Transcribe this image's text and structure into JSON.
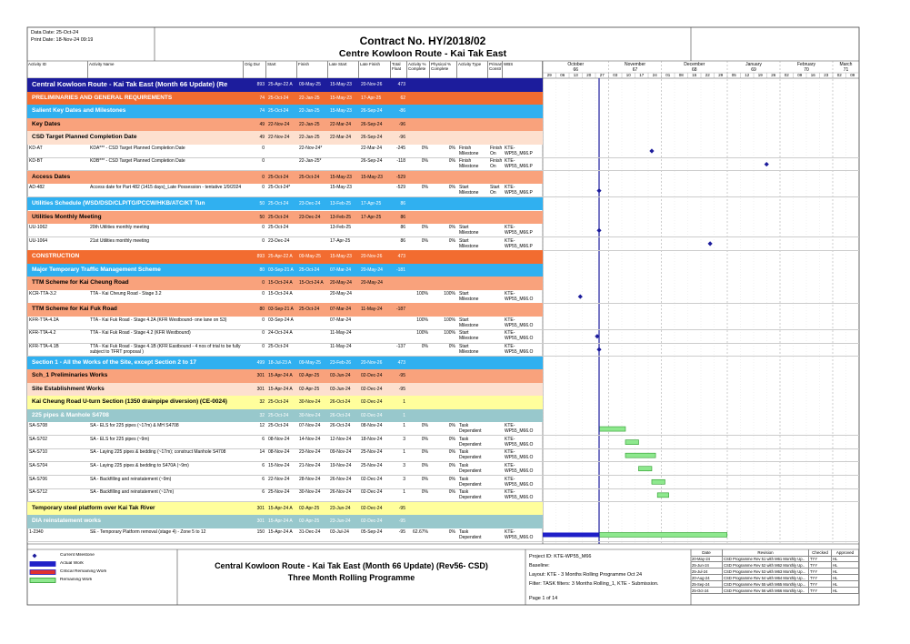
{
  "header": {
    "data_date_label": "Data Date:",
    "data_date": "25-Oct-24",
    "print_date": "Print Date: 18-Nov-24 09:19",
    "title": "Contract No. HY/2018/02",
    "subtitle": "Centre Kowloon Route - Kai Tak East"
  },
  "table": {
    "columns": [
      "Activity ID",
      "Activity Name",
      "Orig Dur",
      "Start",
      "Finish",
      "Late Start",
      "Late Finish",
      "Total Float",
      "Activity % Complete",
      "Physical % Complete",
      "Activity Type",
      "Primary Constr",
      "WBS"
    ],
    "rows": [
      {
        "name": "Central Kowloon Route - Kai Tak East (Month 66 Update) (Re",
        "orig_dur": 893,
        "start": "25-Apr-22 A",
        "finish": "09-May-25",
        "late_start": "15-May-23",
        "late_finish": "20-Nov-26",
        "total_float": 473,
        "color": "#1c1c9c",
        "text_color": "#ffffff"
      },
      {
        "name": "PRELIMINARIES AND GENERAL REQUIREMENTS",
        "orig_dur": 74,
        "start": "25-Oct-24",
        "finish": "22-Jan-25",
        "late_start": "15-May-23",
        "late_finish": "17-Apr-25",
        "total_float": 62,
        "color": "#f26c30",
        "text_color": "#ffffff"
      },
      {
        "name": "Salient Key Dates and Milestones",
        "orig_dur": 74,
        "start": "25-Oct-24",
        "finish": "22-Jan-25",
        "late_start": "15-May-23",
        "late_finish": "26-Sep-24",
        "total_float": -86,
        "color": "#30b0f0",
        "text_color": "#ffffff"
      },
      {
        "name": "Key Dates",
        "orig_dur": 49,
        "start": "22-Nov-24",
        "finish": "22-Jan-25",
        "late_start": "22-Mar-24",
        "late_finish": "26-Sep-24",
        "total_float": -96,
        "color": "#f9a27c",
        "text_color": "#000000"
      },
      {
        "name": "CSD Target Planned Completion Date",
        "orig_dur": 49,
        "start": "22-Nov-24",
        "finish": "22-Jan-25",
        "late_start": "22-Mar-24",
        "late_finish": "26-Sep-24",
        "total_float": -96,
        "color": "#fde0cf",
        "text_color": "#000000"
      },
      {
        "id": "KD-AT",
        "name": "KDA*** - CSD Target Planned Completion Date",
        "orig_dur": 0,
        "finish": "22-Nov-24*",
        "late_finish": "22-Mar-24",
        "total_float": -245,
        "activity_pct": "0%",
        "physical_pct": "0%",
        "activity_type": "Finish Milestone",
        "primary_constr": "Finish On",
        "wbs": "KTE-WP55_M66.P"
      },
      {
        "id": "KD-BT",
        "name": "KDB*** - CSD Target Planned Completion Date",
        "orig_dur": 0,
        "finish": "22-Jan-25*",
        "late_finish": "26-Sep-24",
        "total_float": -118,
        "activity_pct": "0%",
        "physical_pct": "0%",
        "activity_type": "Finish Milestone",
        "primary_constr": "Finish On",
        "wbs": "KTE-WP55_M66.P"
      },
      {
        "name": "Access Dates",
        "orig_dur": 0,
        "start": "25-Oct-24",
        "finish": "25-Oct-24",
        "late_start": "15-May-23",
        "late_finish": "15-May-23",
        "total_float": -529,
        "color": "#f9a27c",
        "text_color": "#000000"
      },
      {
        "id": "AD-482",
        "name": "Access date for Part 482 (1415 days)_Late Possession - tentative 1/9/2024",
        "orig_dur": 0,
        "start": "25-Oct-24*",
        "late_start": "15-May-23",
        "total_float": -529,
        "activity_pct": "0%",
        "physical_pct": "0%",
        "activity_type": "Start Milestone",
        "primary_constr": "Start On",
        "wbs": "KTE-WP55_M66.P"
      },
      {
        "name": "Utilities Schedule (WSD/DSD/CLP/TG/PCCW/HKB/ATC/KT Tun",
        "orig_dur": 50,
        "start": "25-Oct-24",
        "finish": "23-Dec-24",
        "late_start": "13-Feb-25",
        "late_finish": "17-Apr-25",
        "total_float": 86,
        "color": "#30b0f0",
        "text_color": "#ffffff"
      },
      {
        "name": "Utilities Monthly Meeting",
        "orig_dur": 50,
        "start": "25-Oct-24",
        "finish": "23-Dec-24",
        "late_start": "13-Feb-25",
        "late_finish": "17-Apr-25",
        "total_float": 86,
        "color": "#f9a27c",
        "text_color": "#000000"
      },
      {
        "id": "UU-1062",
        "name": "20th  Utilities monthly meeting",
        "orig_dur": 0,
        "start": "25-Oct-24",
        "late_start": "13-Feb-25",
        "total_float": 86,
        "activity_pct": "0%",
        "physical_pct": "0%",
        "activity_type": "Start Milestone",
        "wbs": "KTE-WP55_M66.P"
      },
      {
        "id": "UU-1064",
        "name": "21st  Utilities monthly meeting",
        "orig_dur": 0,
        "start": "23-Dec-24",
        "late_start": "17-Apr-25",
        "total_float": 86,
        "activity_pct": "0%",
        "physical_pct": "0%",
        "activity_type": "Start Milestone",
        "wbs": "KTE-WP55_M66.P"
      },
      {
        "name": "CONSTRUCTION",
        "orig_dur": 893,
        "start": "25-Apr-22 A",
        "finish": "09-May-25",
        "late_start": "15-May-23",
        "late_finish": "20-Nov-26",
        "total_float": 473,
        "color": "#f26c30",
        "text_color": "#ffffff"
      },
      {
        "name": "Major Temporary Traffic Management Scheme",
        "orig_dur": 80,
        "start": "03-Sep-21 A",
        "finish": "25-Oct-24",
        "late_start": "07-Mar-24",
        "late_finish": "20-May-24",
        "total_float": -181,
        "color": "#30b0f0",
        "text_color": "#ffffff"
      },
      {
        "name": "TTM Scheme for Kai Cheung Road",
        "orig_dur": 0,
        "start": "15-Oct-24 A",
        "finish": "15-Oct-24 A",
        "late_start": "20-May-24",
        "late_finish": "20-May-24",
        "color": "#f9a27c",
        "text_color": "#000000"
      },
      {
        "id": "KCR-TTA-3.2",
        "name": "TTA - Kai Cheung Road - Stage 3.2",
        "orig_dur": 0,
        "start": "15-Oct-24 A",
        "late_start": "20-May-24",
        "activity_pct": "100%",
        "physical_pct": "100%",
        "activity_type": "Start Milestone",
        "wbs": "KTE-WP55_M66.O"
      },
      {
        "name": "TTM Scheme for Kai Fuk Road",
        "orig_dur": 80,
        "start": "03-Sep-21 A",
        "finish": "25-Oct-24",
        "late_start": "07-Mar-24",
        "late_finish": "11-May-24",
        "total_float": -187,
        "color": "#f9a27c",
        "text_color": "#000000"
      },
      {
        "id": "KFR-TTA-4.2A",
        "name": "TTA - Kai Fuk Road - Stage 4.2A (KFR Westbound- one lane on S3)",
        "orig_dur": 0,
        "start": "03-Sep-24 A",
        "late_start": "07-Mar-24",
        "activity_pct": "100%",
        "physical_pct": "100%",
        "activity_type": "Start Milestone",
        "wbs": "KTE-WP55_M66.O"
      },
      {
        "id": "KFR-TTA-4.2",
        "name": "TTA - Kai Fuk Road - Stage 4.2 (KFR Westbound)",
        "orig_dur": 0,
        "start": "24-Oct-24 A",
        "late_start": "11-May-24",
        "activity_pct": "100%",
        "physical_pct": "100%",
        "activity_type": "Start Milestone",
        "wbs": "KTE-WP55_M66.O"
      },
      {
        "id": "KFR-TTA-4.1B",
        "name": "TTA - Kai Fuk Road - Stage 4.1B (KFR Eastbound - 4 nos of trial to be fully subject to TFRT proposal )",
        "orig_dur": 0,
        "start": "25-Oct-24",
        "late_start": "11-May-24",
        "total_float": -137,
        "activity_pct": "0%",
        "physical_pct": "0%",
        "activity_type": "Start Milestone",
        "wbs": "KTE-WP55_M66.O"
      },
      {
        "name": "Section 1 - All the Works of the Site, except Section 2 to 17",
        "orig_dur": 499,
        "start": "18-Jul-23 A",
        "finish": "09-May-25",
        "late_start": "23-Feb-26",
        "late_finish": "20-Nov-26",
        "total_float": 473,
        "color": "#30b0f0",
        "text_color": "#ffffff"
      },
      {
        "name": "Sch_1 Preliminaries Works",
        "orig_dur": 301,
        "start": "15-Apr-24 A",
        "finish": "02-Apr-25",
        "late_start": "03-Jun-24",
        "late_finish": "02-Dec-24",
        "total_float": -95,
        "color": "#f9a27c",
        "text_color": "#000000"
      },
      {
        "name": "Site Establishment Works",
        "orig_dur": 301,
        "start": "15-Apr-24 A",
        "finish": "02-Apr-25",
        "late_start": "03-Jun-24",
        "late_finish": "02-Dec-24",
        "total_float": -95,
        "color": "#fde0cf",
        "text_color": "#000000"
      },
      {
        "name": "Kai Cheung Road U-turn Section (1350 drainpipe diversion) (CE-0024)",
        "orig_dur": 32,
        "start": "25-Oct-24",
        "finish": "30-Nov-24",
        "late_start": "26-Oct-24",
        "late_finish": "02-Dec-24",
        "total_float": 1,
        "color": "#fffe9c",
        "text_color": "#000000"
      },
      {
        "name": "225 pipes & Manhole S4708",
        "orig_dur": 32,
        "start": "25-Oct-24",
        "finish": "30-Nov-24",
        "late_start": "26-Oct-24",
        "late_finish": "02-Dec-24",
        "total_float": 1,
        "color": "#98c8cc",
        "text_color": "#ffffff"
      },
      {
        "id": "SA-S708",
        "name": "SA - ELS for 225 pipes (~17m) & MH S4708",
        "orig_dur": 12,
        "start": "25-Oct-24",
        "finish": "07-Nov-24",
        "late_start": "26-Oct-24",
        "late_finish": "08-Nov-24",
        "total_float": 1,
        "activity_pct": "0%",
        "physical_pct": "0%",
        "activity_type": "Task Dependent",
        "wbs": "KTE-WP55_M66.O"
      },
      {
        "id": "SA-S702",
        "name": "SA - ELS for 225 pipes (~9m)",
        "orig_dur": 6,
        "start": "08-Nov-24",
        "finish": "14-Nov-24",
        "late_start": "12-Nov-24",
        "late_finish": "18-Nov-24",
        "total_float": 3,
        "activity_pct": "0%",
        "physical_pct": "0%",
        "activity_type": "Task Dependent",
        "wbs": "KTE-WP55_M66.O"
      },
      {
        "id": "SA-S710",
        "name": "SA - Laying 225 pipes & bedding (~17m); construct Manhole S4708",
        "orig_dur": 14,
        "start": "08-Nov-24",
        "finish": "23-Nov-24",
        "late_start": "09-Nov-24",
        "late_finish": "25-Nov-24",
        "total_float": 1,
        "activity_pct": "0%",
        "physical_pct": "0%",
        "activity_type": "Task Dependent",
        "wbs": "KTE-WP55_M66.O"
      },
      {
        "id": "SA-S704",
        "name": "SA - Laying 225 pipes & bedding to S470A (~9m)",
        "orig_dur": 6,
        "start": "15-Nov-24",
        "finish": "21-Nov-24",
        "late_start": "19-Nov-24",
        "late_finish": "25-Nov-24",
        "total_float": 3,
        "activity_pct": "0%",
        "physical_pct": "0%",
        "activity_type": "Task Dependent",
        "wbs": "KTE-WP55_M66.O"
      },
      {
        "id": "SA-S706",
        "name": "SA - Backfilling and reinstatement (~9m)",
        "orig_dur": 6,
        "start": "22-Nov-24",
        "finish": "28-Nov-24",
        "late_start": "26-Nov-24",
        "late_finish": "02-Dec-24",
        "total_float": 3,
        "activity_pct": "0%",
        "physical_pct": "0%",
        "activity_type": "Task Dependent",
        "wbs": "KTE-WP55_M66.O"
      },
      {
        "id": "SA-S712",
        "name": "SA - Backfilling and reinstatement (~17m)",
        "orig_dur": 6,
        "start": "25-Nov-24",
        "finish": "30-Nov-24",
        "late_start": "26-Nov-24",
        "late_finish": "02-Dec-24",
        "total_float": 1,
        "activity_pct": "0%",
        "physical_pct": "0%",
        "activity_type": "Task Dependent",
        "wbs": "KTE-WP55_M66.O"
      },
      {
        "name": "Temporary steel platform over Kai Tak River",
        "orig_dur": 301,
        "start": "15-Apr-24 A",
        "finish": "02-Apr-25",
        "late_start": "23-Jun-24",
        "late_finish": "02-Dec-24",
        "total_float": -95,
        "color": "#fffe9c",
        "text_color": "#000000"
      },
      {
        "name": "DIA reinstatement works",
        "orig_dur": 301,
        "start": "15-Apr-24 A",
        "finish": "02-Apr-25",
        "late_start": "23-Jun-24",
        "late_finish": "02-Dec-24",
        "total_float": -95,
        "color": "#98c8cc",
        "text_color": "#ffffff"
      },
      {
        "id": "1-2340",
        "name": "SE - Temporary Platform removal (stage 4) - Zone 5 to 12",
        "orig_dur": 150,
        "start": "15-Apr-24 A",
        "finish": "31-Dec-24",
        "late_start": "03-Jul-24",
        "late_finish": "05-Sep-24",
        "total_float": -95,
        "activity_pct": "62.67%",
        "physical_pct": "0%",
        "activity_type": "Task Dependent",
        "wbs": "KTE-WP55_M66.O"
      }
    ]
  },
  "timeline": {
    "months": [
      {
        "name": "October",
        "number": "66",
        "weeks": [
          "29",
          "06",
          "13",
          "20",
          "27"
        ]
      },
      {
        "name": "November",
        "number": "67",
        "weeks": [
          "03",
          "10",
          "17",
          "24"
        ]
      },
      {
        "name": "December",
        "number": "68",
        "weeks": [
          "01",
          "08",
          "15",
          "22",
          "29"
        ]
      },
      {
        "name": "January",
        "number": "69",
        "weeks": [
          "05",
          "12",
          "19",
          "26"
        ]
      },
      {
        "name": "February",
        "number": "70",
        "weeks": [
          "02",
          "09",
          "16",
          "23"
        ]
      },
      {
        "name": "March",
        "number": "71",
        "weeks": [
          "02",
          "09"
        ]
      }
    ]
  },
  "footer": {
    "legend": [
      "Current Milestone",
      "Actual Work",
      "Critical Remaining Work",
      "Remaining Work"
    ],
    "title": "Central Kowloon Route - Kai Tak East (Month 66 Update) (Rev56- CSD)",
    "subtitle": "Three Month Rolling Programme",
    "info": [
      "Project ID: KTE-WP55_M66",
      "Baseline:",
      "Layout: KTE - 3 Months Rolling Programme Oct 24",
      "Filter: TASK filters: 3 Months Rolling_1, KTE - Submission."
    ],
    "page": "Page 1 of 14",
    "revisions": {
      "columns": [
        "Date",
        "Revision",
        "Checked",
        "Approved"
      ],
      "rows": [
        [
          "20-May-24",
          "CSD Programme Rev 51 with M61 Monthly Up..",
          "TYY",
          "HL"
        ],
        [
          "25-Jun-24",
          "CSD Programme Rev 52 with M62 Monthly Up..",
          "TYY",
          "HL"
        ],
        [
          "25-Jul-24",
          "CSD Programme Rev 53 with M63 Monthly Up...",
          "TYY",
          "HL"
        ],
        [
          "20-Aug-24",
          "CSD Programme Rev 54 with M64 Monthly Up...",
          "TYY",
          "HL"
        ],
        [
          "25-Sep-24",
          "CSD Programme Rev 55 with M65 Monthly Up...",
          "TYY",
          "HL"
        ],
        [
          "25-Oct-24",
          "CSD Programme Rev 56 with M66 Monthly Up..",
          "TYY",
          "HL"
        ]
      ]
    }
  }
}
